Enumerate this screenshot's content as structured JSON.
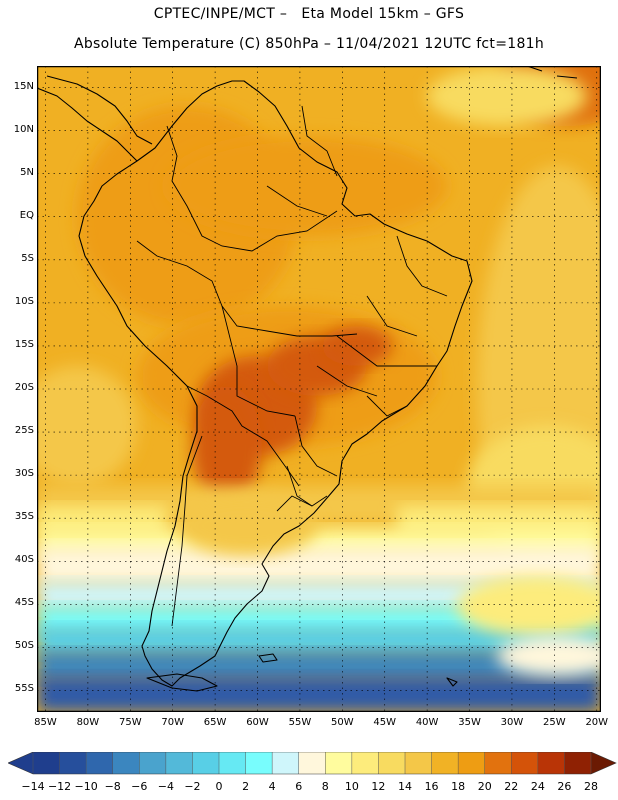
{
  "header": {
    "line1": "CPTEC/INPE/MCT –   Eta Model 15km – GFS",
    "line2": "Absolute Temperature (C) 850hPa – 11/04/2021 12UTC fct=181h"
  },
  "map": {
    "lat_labels": [
      "15N",
      "10N",
      "5N",
      "EQ",
      "5S",
      "10S",
      "15S",
      "20S",
      "25S",
      "30S",
      "35S",
      "40S",
      "45S",
      "50S",
      "55S"
    ],
    "lon_labels": [
      "85W",
      "80W",
      "75W",
      "70W",
      "65W",
      "60W",
      "55W",
      "50W",
      "45W",
      "40W",
      "35W",
      "30W",
      "25W",
      "20W"
    ],
    "lat_range": [
      17.5,
      -57.5
    ],
    "lon_range": [
      -86,
      -19.5
    ],
    "gridlines": "dotted"
  },
  "legend": {
    "ticks": [
      "-14",
      "-12",
      "-10",
      "-8",
      "-6",
      "-4",
      "-2",
      "0",
      "2",
      "4",
      "6",
      "8",
      "10",
      "12",
      "14",
      "16",
      "18",
      "20",
      "22",
      "24",
      "26",
      "28"
    ],
    "colors": [
      "#1f3e8d",
      "#264f9c",
      "#2f67ad",
      "#3b86bf",
      "#4aa3cd",
      "#53b9d9",
      "#58cfe6",
      "#66e9f3",
      "#78fdfd",
      "#cff6fb",
      "#fff7dc",
      "#fffc9e",
      "#fdec7c",
      "#f8db60",
      "#f4c748",
      "#f1b225",
      "#ee9d13",
      "#e2720e",
      "#d45309",
      "#b93406",
      "#8f2103"
    ]
  }
}
